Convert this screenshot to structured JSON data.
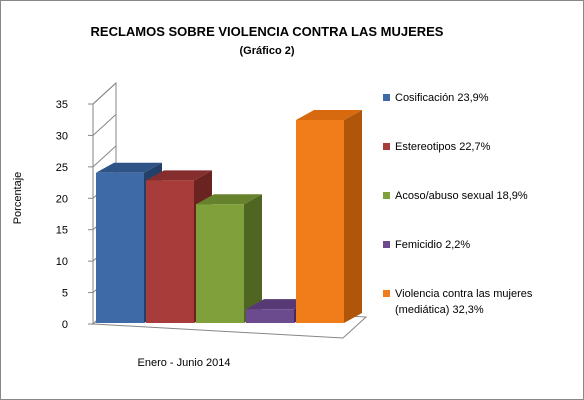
{
  "chart_data": {
    "type": "bar",
    "title": "RECLAMOS SOBRE VIOLENCIA CONTRA LAS MUJERES",
    "subtitle": "(Gráfico 2)",
    "ylabel": "Porcentaje",
    "xlabel": "",
    "categories": [
      "Enero - Junio 2014"
    ],
    "ylim": [
      0,
      35
    ],
    "yticks": [
      0,
      5,
      10,
      15,
      20,
      25,
      30,
      35
    ],
    "grid": false,
    "legend_position": "right",
    "series": [
      {
        "name": "Cosificación",
        "legend_label": "Cosificación 23,9%",
        "values": [
          23.9
        ],
        "color": "#3E6AA8",
        "top_color": "#2E5386",
        "side_color": "#23406A"
      },
      {
        "name": "Estereotipos",
        "legend_label": "Estereotipos 22,7%",
        "values": [
          22.7
        ],
        "color": "#A83C3A",
        "top_color": "#862E2D",
        "side_color": "#6A2321"
      },
      {
        "name": "Acoso/abuso sexual",
        "legend_label": "Acoso/abuso sexual 18,9%",
        "values": [
          18.9
        ],
        "color": "#7FA03A",
        "top_color": "#66822C",
        "side_color": "#4F6622"
      },
      {
        "name": "Femicidio",
        "legend_label": "Femicidio 2,2%",
        "values": [
          2.2
        ],
        "color": "#6B4A8E",
        "top_color": "#573A75",
        "side_color": "#432C5B"
      },
      {
        "name": "Violencia contra las mujeres (mediática)",
        "legend_label": [
          "Violencia contra las mujeres",
          "(mediática) 32,3%"
        ],
        "values": [
          32.3
        ],
        "color": "#F07D1A",
        "top_color": "#D76A0E",
        "side_color": "#B0560A"
      }
    ]
  }
}
